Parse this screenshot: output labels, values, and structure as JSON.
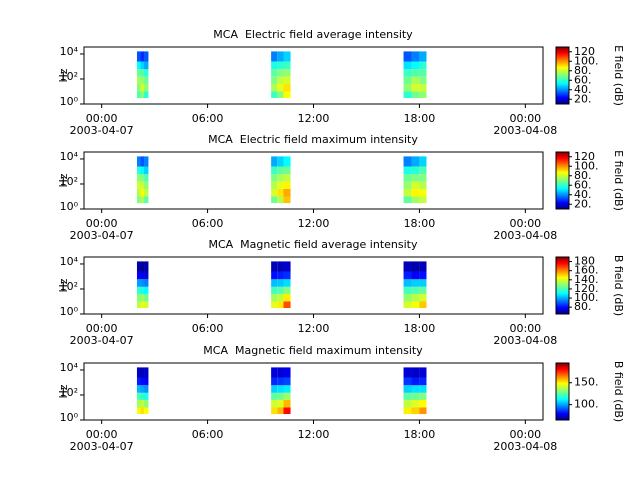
{
  "chart_data": [
    {
      "type": "spectrogram",
      "title": "MCA  Electric field average intensity",
      "ylabel": "Hz",
      "colorbar_label": "E field (dB)",
      "log_y": true,
      "ylim": [
        1,
        36000
      ],
      "yticks": [
        {
          "value": 1,
          "label": "10⁰"
        },
        {
          "value": 100,
          "label": "10²"
        },
        {
          "value": 10000,
          "label": "10⁴"
        }
      ],
      "xlim": [
        -1,
        25
      ],
      "xticks": [
        {
          "value": 0,
          "label": "00:00",
          "date": "2003-04-07"
        },
        {
          "value": 6,
          "label": "06:00"
        },
        {
          "value": 12,
          "label": "12:00"
        },
        {
          "value": 18,
          "label": "18:00"
        },
        {
          "value": 24,
          "label": "00:00",
          "date": "2003-04-08"
        }
      ],
      "x": [
        2.0,
        2.2,
        2.4,
        9.6,
        9.95,
        10.3,
        17.1,
        17.55,
        18.0
      ],
      "x_end": [
        2.2,
        2.4,
        2.65,
        9.95,
        10.3,
        10.7,
        17.55,
        18.0,
        18.4
      ],
      "bins": [
        3,
        10,
        40,
        150,
        600,
        2500,
        16000
      ],
      "values": [
        [
          65,
          70,
          75,
          68,
          55,
          35
        ],
        [
          70,
          80,
          72,
          65,
          50,
          30
        ],
        [
          60,
          72,
          68,
          60,
          45,
          35
        ],
        [
          62,
          75,
          70,
          66,
          58,
          40
        ],
        [
          70,
          82,
          78,
          70,
          60,
          45
        ],
        [
          85,
          88,
          80,
          72,
          62,
          50
        ],
        [
          60,
          72,
          68,
          62,
          52,
          35
        ],
        [
          68,
          80,
          75,
          65,
          55,
          40
        ],
        [
          72,
          78,
          70,
          65,
          60,
          45
        ]
      ],
      "clim": [
        10,
        130
      ],
      "cticks": [
        {
          "value": 20,
          "label": "20."
        },
        {
          "value": 40,
          "label": "40."
        },
        {
          "value": 60,
          "label": "60."
        },
        {
          "value": 80,
          "label": "80."
        },
        {
          "value": 100,
          "label": "100."
        },
        120
      ]
    },
    {
      "type": "spectrogram",
      "title": "MCA  Electric field maximum intensity",
      "ylabel": "Hz",
      "colorbar_label": "E field (dB)",
      "log_y": true,
      "ylim": [
        1,
        36000
      ],
      "yticks": [
        {
          "value": 1,
          "label": "10⁰"
        },
        {
          "value": 100,
          "label": "10²"
        },
        {
          "value": 10000,
          "label": "10⁴"
        }
      ],
      "xlim": [
        -1,
        25
      ],
      "xticks": [
        {
          "value": 0,
          "label": "00:00",
          "date": "2003-04-07"
        },
        {
          "value": 6,
          "label": "06:00"
        },
        {
          "value": 12,
          "label": "12:00"
        },
        {
          "value": 18,
          "label": "18:00"
        },
        {
          "value": 24,
          "label": "00:00",
          "date": "2003-04-08"
        }
      ],
      "x": [
        2.0,
        2.2,
        2.4,
        9.6,
        9.95,
        10.3,
        17.1,
        17.55,
        18.0
      ],
      "x_end": [
        2.2,
        2.4,
        2.65,
        9.95,
        10.3,
        10.7,
        17.55,
        18.0,
        18.4
      ],
      "bins": [
        3,
        10,
        40,
        150,
        600,
        2500,
        16000
      ],
      "values": [
        [
          70,
          76,
          80,
          72,
          60,
          40
        ],
        [
          75,
          85,
          78,
          70,
          55,
          35
        ],
        [
          66,
          78,
          72,
          65,
          50,
          40
        ],
        [
          68,
          80,
          76,
          70,
          62,
          45
        ],
        [
          76,
          88,
          82,
          75,
          66,
          50
        ],
        [
          92,
          95,
          86,
          78,
          68,
          55
        ],
        [
          66,
          78,
          72,
          68,
          58,
          40
        ],
        [
          74,
          86,
          80,
          70,
          60,
          45
        ],
        [
          78,
          84,
          76,
          70,
          64,
          50
        ]
      ],
      "clim": [
        10,
        130
      ],
      "cticks": [
        {
          "value": 20,
          "label": "20."
        },
        {
          "value": 40,
          "label": "40."
        },
        {
          "value": 60,
          "label": "60."
        },
        {
          "value": 80,
          "label": "80."
        },
        {
          "value": 100,
          "label": "100."
        },
        120
      ]
    },
    {
      "type": "spectrogram",
      "title": "MCA  Magnetic field average intensity",
      "ylabel": "Hz",
      "colorbar_label": "B field (dB)",
      "log_y": true,
      "ylim": [
        1,
        36000
      ],
      "yticks": [
        {
          "value": 1,
          "label": "10⁰"
        },
        {
          "value": 100,
          "label": "10²"
        },
        {
          "value": 10000,
          "label": "10⁴"
        }
      ],
      "xlim": [
        -1,
        25
      ],
      "xticks": [
        {
          "value": 0,
          "label": "00:00",
          "date": "2003-04-07"
        },
        {
          "value": 6,
          "label": "06:00"
        },
        {
          "value": 12,
          "label": "12:00"
        },
        {
          "value": 18,
          "label": "18:00"
        },
        {
          "value": 24,
          "label": "00:00",
          "date": "2003-04-08"
        }
      ],
      "x": [
        2.0,
        2.2,
        2.4,
        9.6,
        9.95,
        10.3,
        17.1,
        17.55,
        18.0
      ],
      "x_end": [
        2.2,
        2.4,
        2.65,
        9.95,
        10.3,
        10.7,
        17.55,
        18.0,
        18.4
      ],
      "bins": [
        3,
        10,
        40,
        150,
        600,
        2500,
        16000
      ],
      "values": [
        [
          135,
          128,
          118,
          100,
          80,
          70
        ],
        [
          140,
          130,
          115,
          98,
          78,
          68
        ],
        [
          138,
          126,
          112,
          96,
          76,
          70
        ],
        [
          140,
          132,
          120,
          104,
          82,
          72
        ],
        [
          145,
          135,
          122,
          105,
          84,
          72
        ],
        [
          165,
          145,
          128,
          108,
          86,
          74
        ],
        [
          138,
          130,
          120,
          104,
          84,
          72
        ],
        [
          142,
          134,
          122,
          106,
          80,
          70
        ],
        [
          150,
          138,
          124,
          106,
          82,
          72
        ]
      ],
      "clim": [
        65,
        190
      ],
      "cticks": [
        {
          "value": 80,
          "label": "80."
        },
        {
          "value": 100,
          "label": "100."
        },
        {
          "value": 120,
          "label": "120."
        },
        {
          "value": 140,
          "label": "140."
        },
        {
          "value": 160,
          "label": "160."
        },
        180
      ]
    },
    {
      "type": "spectrogram",
      "title": "MCA  Magnetic field maximum intensity",
      "ylabel": "Hz",
      "colorbar_label": "B field (dB)",
      "log_y": true,
      "ylim": [
        1,
        36000
      ],
      "yticks": [
        {
          "value": 1,
          "label": "10⁰"
        },
        {
          "value": 100,
          "label": "10²"
        },
        {
          "value": 10000,
          "label": "10⁴"
        }
      ],
      "xlim": [
        -1,
        25
      ],
      "xticks": [
        {
          "value": 0,
          "label": "00:00",
          "date": "2003-04-07"
        },
        {
          "value": 6,
          "label": "06:00"
        },
        {
          "value": 12,
          "label": "12:00"
        },
        {
          "value": 18,
          "label": "18:00"
        },
        {
          "value": 24,
          "label": "00:00",
          "date": "2003-04-08"
        }
      ],
      "x": [
        2.0,
        2.2,
        2.4,
        9.6,
        9.95,
        10.3,
        17.1,
        17.55,
        18.0
      ],
      "x_end": [
        2.2,
        2.4,
        2.65,
        9.95,
        10.3,
        10.7,
        17.55,
        18.0,
        18.4
      ],
      "bins": [
        3,
        10,
        40,
        150,
        600,
        2500,
        16000
      ],
      "values": [
        [
          145,
          135,
          124,
          105,
          85,
          74
        ],
        [
          150,
          138,
          120,
          102,
          82,
          72
        ],
        [
          146,
          132,
          118,
          100,
          80,
          74
        ],
        [
          150,
          140,
          126,
          108,
          86,
          76
        ],
        [
          155,
          142,
          128,
          110,
          88,
          76
        ],
        [
          178,
          155,
          134,
          112,
          90,
          78
        ],
        [
          148,
          138,
          126,
          108,
          88,
          76
        ],
        [
          152,
          142,
          128,
          110,
          84,
          74
        ],
        [
          160,
          146,
          130,
          110,
          86,
          76
        ]
      ],
      "clim": [
        65,
        195
      ],
      "cticks": [
        {
          "value": 100,
          "label": "100."
        },
        {
          "value": 150,
          "label": "150."
        }
      ]
    }
  ]
}
